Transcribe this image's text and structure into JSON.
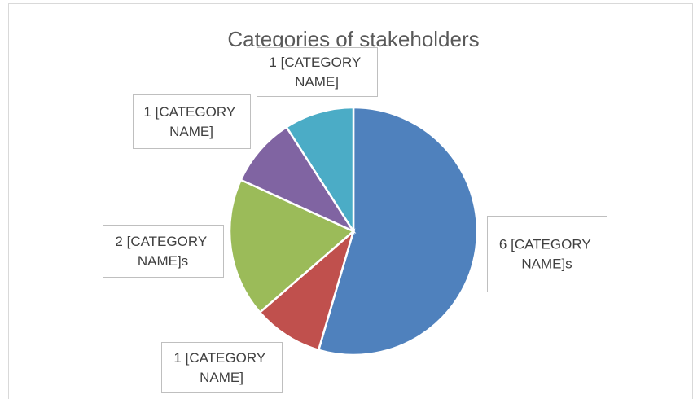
{
  "chart_data": {
    "type": "pie",
    "title": "Categories of stakeholders",
    "values": [
      6,
      1,
      2,
      1,
      1
    ],
    "value_labels": [
      "6 [CATEGORY NAME]s",
      "1 [CATEGORY NAME]",
      "2 [CATEGORY NAME]s",
      "1 [CATEGORY NAME]",
      "1 [CATEGORY NAME]"
    ],
    "colors": [
      "#4f81bd",
      "#c0504d",
      "#9bbb59",
      "#8064a2",
      "#4bacc6"
    ]
  }
}
